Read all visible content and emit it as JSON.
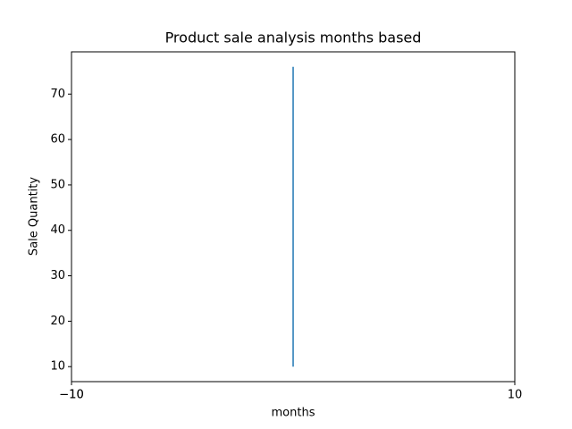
{
  "chart_data": {
    "type": "line",
    "title": "Product sale analysis months based",
    "x_label": "months",
    "y_label": "Sale Quantity",
    "x": [
      0,
      0
    ],
    "series": [
      {
        "color": "#1f77b4",
        "values": [
          10,
          76
        ]
      }
    ],
    "xlim": [
      -10,
      10
    ],
    "xticks": [
      {
        "value": -10,
        "label": "−10"
      },
      {
        "value": -10,
        "label": "−10"
      },
      10
    ],
    "ylim": [
      6.7,
      79.3
    ],
    "yticks": [
      10,
      20,
      30,
      40,
      50,
      60,
      70
    ]
  }
}
